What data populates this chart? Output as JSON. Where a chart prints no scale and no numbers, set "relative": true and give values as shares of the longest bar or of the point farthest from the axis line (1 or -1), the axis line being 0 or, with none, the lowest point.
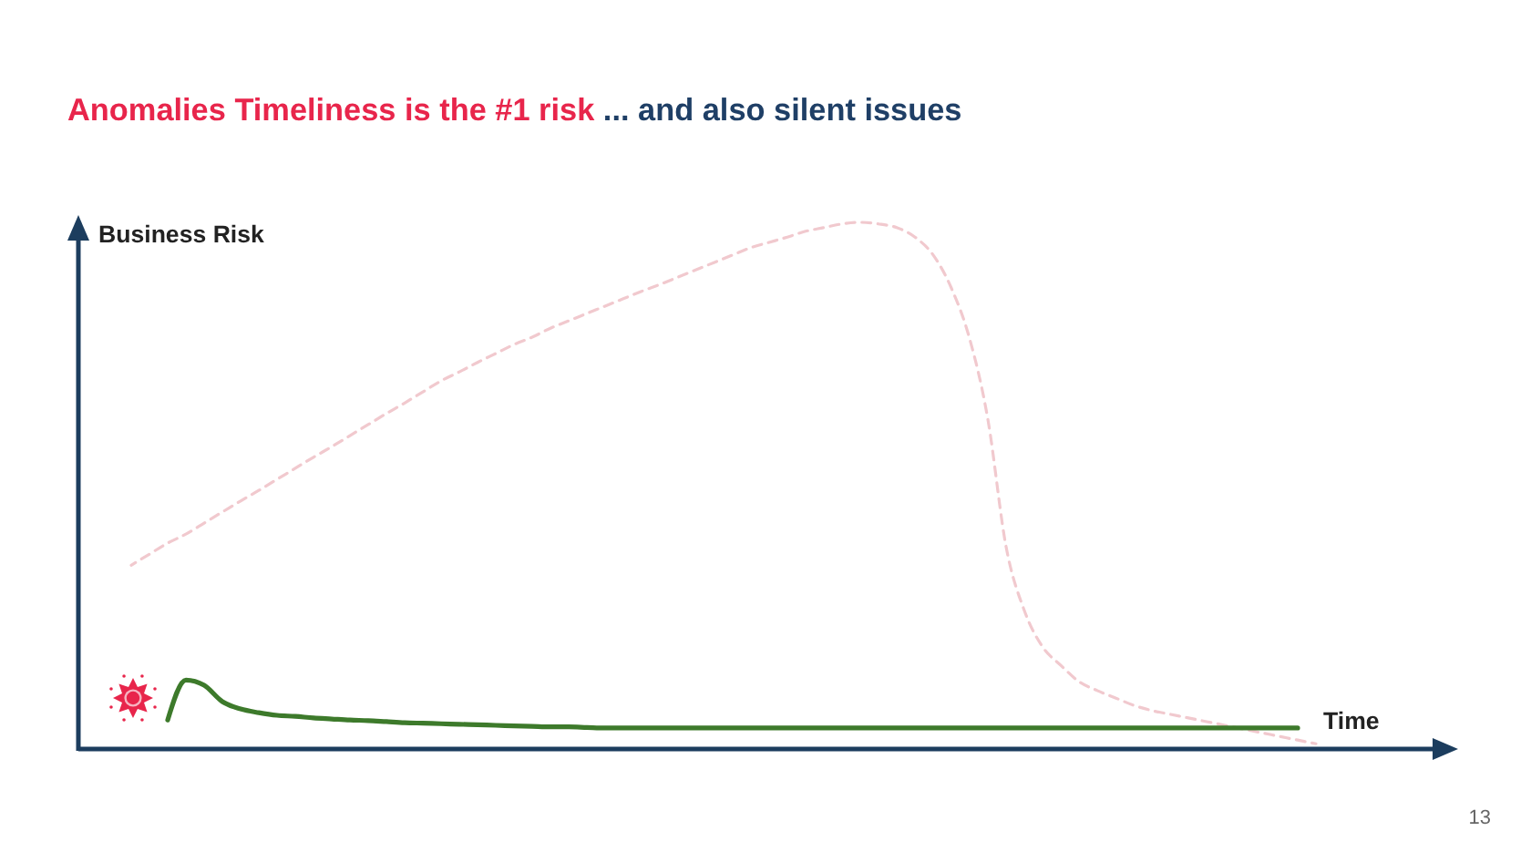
{
  "chart_data": {
    "type": "line",
    "title": "Anomalies Timeliness is the #1 risk",
    "subtitle": "... and also silent issues",
    "xlabel": "Time",
    "ylabel": "Business Risk",
    "relative": true,
    "annotations": [
      "13"
    ],
    "categories": [
      null,
      null,
      null,
      null,
      null,
      null,
      null,
      null,
      null,
      null,
      null,
      null,
      null,
      null,
      null,
      null,
      null,
      null,
      null,
      null,
      null,
      null,
      null,
      null,
      null,
      null,
      null,
      null,
      null,
      null,
      null,
      null,
      null,
      null,
      null,
      null,
      null,
      null,
      null,
      null,
      null,
      null,
      null,
      null,
      null,
      null,
      null,
      null,
      null,
      null,
      null,
      null,
      null,
      null,
      null,
      null,
      null,
      null,
      null,
      null,
      null,
      null,
      null,
      null,
      null,
      null,
      null,
      null,
      null,
      null,
      null,
      null,
      null,
      null,
      null
    ],
    "series": [
      {
        "color": "#f1c9ce",
        "line_style": "dashed",
        "values": [
          null,
          null,
          0.349,
          0.37,
          0.391,
          0.408,
          0.429,
          0.45,
          0.471,
          0.491,
          0.512,
          0.533,
          0.554,
          0.574,
          0.595,
          0.616,
          0.637,
          0.657,
          0.678,
          0.699,
          0.716,
          0.734,
          0.751,
          0.768,
          0.782,
          0.799,
          0.813,
          0.827,
          0.841,
          0.855,
          0.869,
          0.882,
          0.896,
          0.91,
          0.924,
          0.938,
          0.952,
          0.962,
          0.972,
          0.983,
          0.99,
          0.997,
          1,
          0.997,
          0.99,
          0.972,
          0.938,
          0.875,
          0.779,
          0.626,
          0.384,
          0.263,
          0.194,
          0.159,
          0.128,
          0.111,
          0.097,
          0.083,
          0.073,
          0.066,
          0.059,
          0.052,
          0.045,
          0.038,
          0.031,
          0.024,
          0.017,
          0.01,
          null,
          null,
          null,
          null,
          null,
          null,
          null
        ]
      },
      {
        "color": "#3d7a2b",
        "line_style": "solid",
        "values": [
          null,
          null,
          null,
          null,
          0.055,
          0.131,
          0.121,
          0.09,
          0.076,
          0.069,
          0.064,
          0.062,
          0.059,
          0.057,
          0.055,
          0.054,
          0.052,
          0.05,
          0.049,
          0.048,
          0.047,
          0.046,
          0.045,
          0.044,
          0.043,
          0.042,
          0.042,
          0.041,
          0.04,
          0.04,
          0.04,
          0.04,
          0.04,
          0.04,
          0.04,
          0.04,
          0.04,
          0.04,
          0.04,
          0.04,
          0.04,
          0.04,
          0.04,
          0.04,
          0.04,
          0.04,
          0.04,
          0.04,
          0.04,
          0.04,
          0.04,
          0.04,
          0.04,
          0.04,
          0.04,
          0.04,
          0.04,
          0.04,
          0.04,
          0.04,
          0.04,
          0.04,
          0.04,
          0.04,
          0.04,
          0.04,
          0.04,
          null,
          null,
          null,
          null,
          null,
          null,
          null,
          null
        ]
      }
    ]
  }
}
